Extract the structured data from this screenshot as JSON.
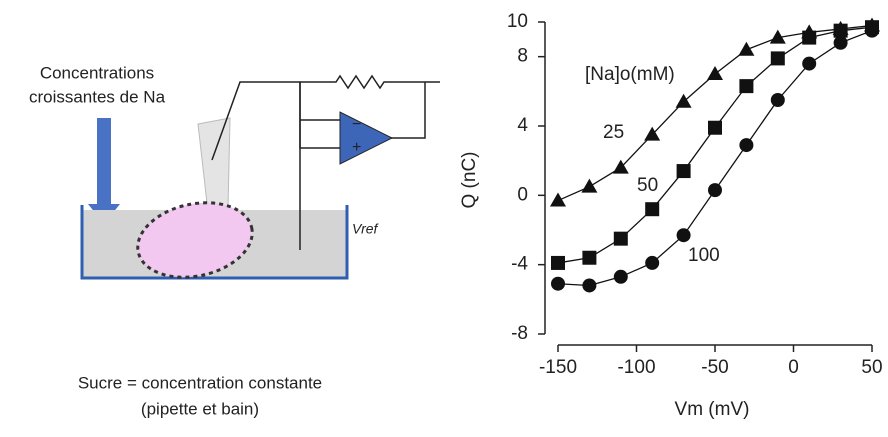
{
  "diagram": {
    "stimulus_label": [
      "Concentrations",
      "croissantes de Na"
    ],
    "vref_label": "Vref",
    "caption": [
      "Sucre = concentration constante",
      "(pipette et bain)"
    ]
  },
  "chart_data": {
    "type": "line",
    "x_label": "Vm (mV)",
    "y_label": "Q (nC)",
    "legend_title": "[Na]o(mM)",
    "x": [
      -150,
      -130,
      -110,
      -90,
      -70,
      -50,
      -30,
      -10,
      10,
      30,
      50
    ],
    "series": [
      {
        "name": "25",
        "color": "#111111",
        "marker": "triangle",
        "values": [
          -0.3,
          0.5,
          1.6,
          3.5,
          5.4,
          7.0,
          8.4,
          9.1,
          9.4,
          9.6,
          9.8
        ]
      },
      {
        "name": "50",
        "color": "#111111",
        "marker": "square",
        "values": [
          -3.9,
          -3.6,
          -2.5,
          -0.8,
          1.4,
          3.9,
          6.3,
          7.9,
          9.1,
          9.5,
          9.7
        ]
      },
      {
        "name": "100",
        "color": "#111111",
        "marker": "circle",
        "values": [
          -5.1,
          -5.2,
          -4.7,
          -3.9,
          -2.3,
          0.3,
          2.9,
          5.5,
          7.6,
          8.8,
          9.5
        ]
      }
    ],
    "xlim": [
      -150,
      50
    ],
    "xticks": [
      -150,
      -100,
      -50,
      0,
      50
    ],
    "ylim": [
      -8,
      10
    ],
    "yticks": [
      -8,
      -4,
      0,
      4,
      8,
      10
    ]
  }
}
